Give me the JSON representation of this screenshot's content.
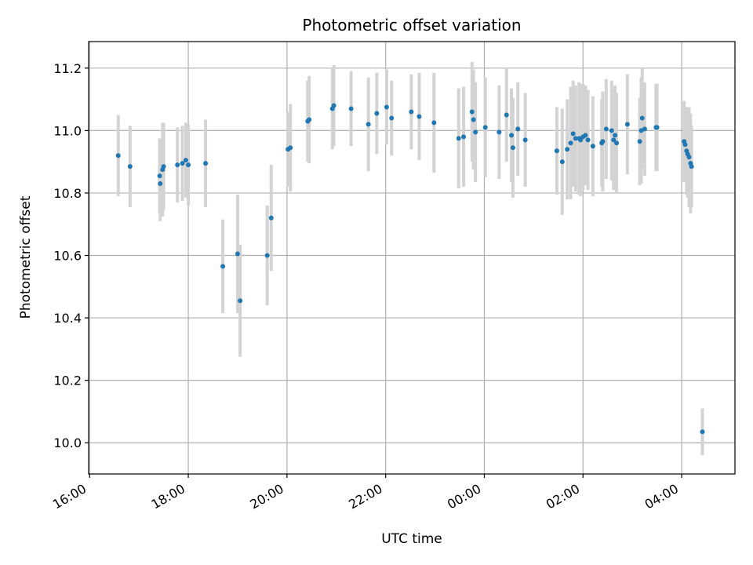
{
  "chart_data": {
    "type": "scatter",
    "title": "Photometric offset variation",
    "xlabel": "UTC time",
    "ylabel": "Photometric offset",
    "x_ticks": [
      "16:00",
      "18:00",
      "20:00",
      "22:00",
      "00:00",
      "02:00",
      "04:00"
    ],
    "y_ticks": [
      "10.0",
      "10.2",
      "10.4",
      "10.6",
      "10.8",
      "11.0",
      "11.2"
    ],
    "xlim_hours": [
      15.98,
      29.08
    ],
    "ylim": [
      9.9,
      11.285
    ],
    "grid": true,
    "colors": {
      "point": "#1f77b4",
      "errorbar": "#d3d3d3",
      "grid": "#b0b0b0"
    },
    "series": [
      {
        "x_hours": [
          16.58,
          16.82,
          17.42,
          17.43,
          17.48,
          17.5,
          17.78,
          17.88,
          17.95,
          18.0,
          18.35,
          18.7,
          19.0,
          19.05,
          19.6,
          19.68,
          20.02,
          20.07,
          20.42,
          20.45,
          20.92,
          20.95,
          21.3,
          21.65,
          21.82,
          22.02,
          22.12,
          22.52,
          22.68,
          22.98,
          23.48,
          23.58,
          23.75,
          23.78,
          23.82,
          24.02,
          24.3,
          24.45,
          24.55,
          24.58,
          24.68,
          24.83,
          25.47,
          25.58,
          25.68,
          25.75,
          25.8,
          25.85,
          25.92,
          25.95,
          26.0,
          26.05,
          26.1,
          26.2,
          26.38,
          26.4,
          26.47,
          26.58,
          26.62,
          26.65,
          26.68,
          26.9,
          27.15,
          27.18,
          27.2,
          27.25,
          27.48,
          27.5,
          28.05,
          28.07,
          28.1,
          28.12,
          28.15,
          28.18,
          28.2,
          28.42
        ],
        "y": [
          10.92,
          10.885,
          10.855,
          10.83,
          10.875,
          10.885,
          10.89,
          10.895,
          10.905,
          10.89,
          10.895,
          10.565,
          10.605,
          10.455,
          10.6,
          10.72,
          10.94,
          10.945,
          11.03,
          11.035,
          11.07,
          11.08,
          11.07,
          11.02,
          11.055,
          11.075,
          11.04,
          11.06,
          11.045,
          11.025,
          10.975,
          10.98,
          11.06,
          11.035,
          10.995,
          11.01,
          10.995,
          11.05,
          10.985,
          10.945,
          11.005,
          10.97,
          10.935,
          10.9,
          10.94,
          10.96,
          10.99,
          10.975,
          10.975,
          10.97,
          10.98,
          10.985,
          10.97,
          10.95,
          10.96,
          10.965,
          11.005,
          11.0,
          10.97,
          10.985,
          10.96,
          11.02,
          10.965,
          11.0,
          11.04,
          11.005,
          11.01,
          11.01,
          10.965,
          10.955,
          10.935,
          10.925,
          10.915,
          10.895,
          10.885,
          10.035
        ],
        "yerr": [
          0.13,
          0.13,
          0.12,
          0.12,
          0.15,
          0.14,
          0.12,
          0.12,
          0.12,
          0.13,
          0.14,
          0.15,
          0.19,
          0.18,
          0.16,
          0.17,
          0.12,
          0.14,
          0.13,
          0.14,
          0.13,
          0.13,
          0.12,
          0.15,
          0.13,
          0.12,
          0.12,
          0.12,
          0.14,
          0.16,
          0.16,
          0.16,
          0.16,
          0.16,
          0.16,
          0.16,
          0.15,
          0.15,
          0.15,
          0.16,
          0.15,
          0.15,
          0.14,
          0.17,
          0.16,
          0.18,
          0.17,
          0.17,
          0.18,
          0.18,
          0.17,
          0.16,
          0.16,
          0.16,
          0.14,
          0.16,
          0.16,
          0.16,
          0.16,
          0.16,
          0.16,
          0.16,
          0.14,
          0.17,
          0.16,
          0.15,
          0.14,
          0.14,
          0.13,
          0.12,
          0.14,
          0.14,
          0.16,
          0.16,
          0.13,
          0.075
        ]
      }
    ]
  }
}
